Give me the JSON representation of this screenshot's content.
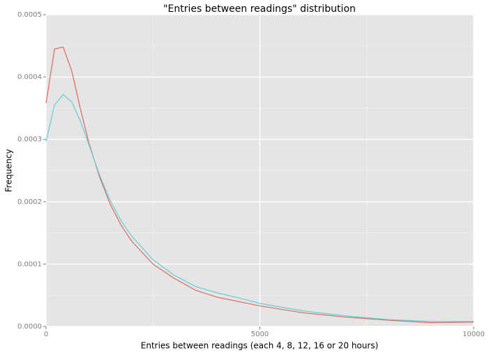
{
  "chart_data": {
    "type": "line",
    "title": "\"Entries between readings\" distribution",
    "xlabel": "Entries between readings (each 4, 8, 12, 16 or 20 hours)",
    "ylabel": "Frequency",
    "x": [
      0,
      200,
      400,
      600,
      800,
      1000,
      1250,
      1500,
      1750,
      2000,
      2500,
      3000,
      3500,
      4000,
      4500,
      5000,
      6000,
      7000,
      8000,
      9000,
      10000
    ],
    "series": [
      {
        "color": "#e0675c",
        "values": [
          0.000358,
          0.000445,
          0.000448,
          0.00041,
          0.00035,
          0.000295,
          0.00024,
          0.000196,
          0.000163,
          0.000137,
          0.0001,
          7.7e-05,
          5.8e-05,
          4.7e-05,
          4e-05,
          3.3e-05,
          2.2e-05,
          1.5e-05,
          1e-05,
          6e-06,
          7e-06
        ]
      },
      {
        "color": "#5ecfd4",
        "values": [
          0.000297,
          0.000355,
          0.000372,
          0.00036,
          0.00033,
          0.000292,
          0.000243,
          0.000202,
          0.00017,
          0.000145,
          0.000107,
          8.2e-05,
          6.4e-05,
          5.4e-05,
          4.6e-05,
          3.7e-05,
          2.5e-05,
          1.7e-05,
          1.1e-05,
          8e-06,
          8e-06
        ]
      }
    ],
    "xlim": [
      0,
      10000
    ],
    "xticks": [
      0,
      5000,
      10000
    ],
    "ylim": [
      0,
      0.0005
    ],
    "yticks": [
      {
        "value": 0,
        "label": "0.0000"
      },
      0.0001,
      0.0002,
      0.0003,
      0.0004,
      0.0005
    ],
    "grid": true
  }
}
